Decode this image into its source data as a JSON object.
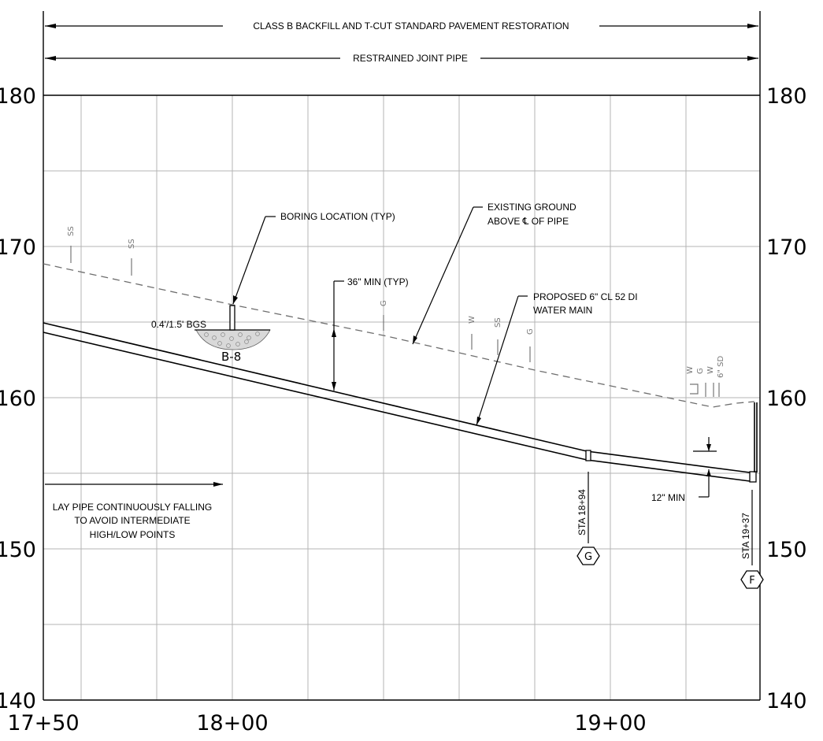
{
  "spans": {
    "restoration": "CLASS B BACKFILL AND T-CUT STANDARD PAVEMENT RESTORATION",
    "restrained": "RESTRAINED JOINT PIPE"
  },
  "elevations": [
    "180",
    "170",
    "160",
    "150",
    "140"
  ],
  "stations": [
    "17+50",
    "18+00",
    "19+00"
  ],
  "notes": {
    "boring_location": "BORING LOCATION (TYP)",
    "existing_ground_1": "EXISTING GROUND",
    "existing_ground_2": "ABOVE ℄ OF PIPE",
    "cover_min": "36\" MIN (TYP)",
    "proposed_pipe_1": "PROPOSED 6\" CL 52 DI",
    "proposed_pipe_2": "WATER MAIN",
    "boring_depth": "0.4'/1.5' BGS",
    "boring_id": "B-8",
    "lay_pipe_1": "LAY PIPE CONTINUOUSLY FALLING",
    "lay_pipe_2": "TO AVOID INTERMEDIATE",
    "lay_pipe_3": "HIGH/LOW POINTS",
    "min_clearance": "12\" MIN",
    "sta_g": "STA 18+94",
    "sta_f": "STA 19+37",
    "tag_g": "G",
    "tag_f": "F"
  },
  "utilities": {
    "ss": "SS",
    "g": "G",
    "w": "W",
    "sd6": "6\" SD"
  },
  "colors": {
    "grid": "#b4b4b4",
    "ground_line": "#6e6e6e",
    "linework": "#000000"
  }
}
